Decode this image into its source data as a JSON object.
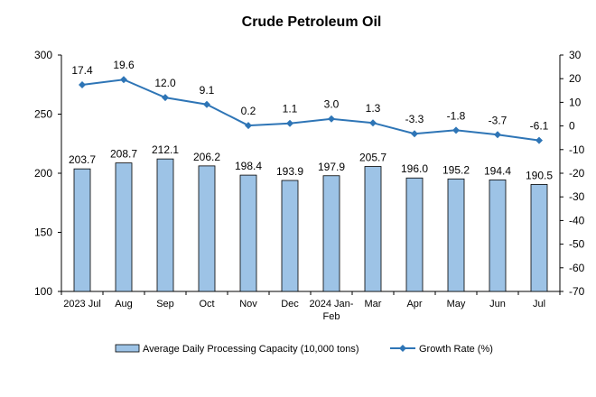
{
  "chart_data": {
    "type": "bar",
    "title": "Crude Petroleum Oil",
    "categories": [
      "2023 Jul",
      "Aug",
      "Sep",
      "Oct",
      "Nov",
      "Dec",
      "2024 Jan-Feb",
      "Mar",
      "Apr",
      "May",
      "Jun",
      "Jul"
    ],
    "series": [
      {
        "name": "Average Daily Processing Capacity (10,000 tons)",
        "type": "bar",
        "axis": "left",
        "color": "#9dc3e6",
        "values": [
          203.7,
          208.7,
          212.1,
          206.2,
          198.4,
          193.9,
          197.9,
          205.7,
          196.0,
          195.2,
          194.4,
          190.5
        ],
        "labels": [
          "203.7",
          "208.7",
          "212.1",
          "206.2",
          "198.4",
          "193.9",
          "197.9",
          "205.7",
          "196.0",
          "195.2",
          "194.4",
          "190.5"
        ]
      },
      {
        "name": "Growth Rate (%)",
        "type": "line",
        "axis": "right",
        "color": "#2e75b6",
        "values": [
          17.4,
          19.6,
          12.0,
          9.1,
          0.2,
          1.1,
          3.0,
          1.3,
          -3.3,
          -1.8,
          -3.7,
          -6.1
        ],
        "labels": [
          "17.4",
          "19.6",
          "12.0",
          "9.1",
          "0.2",
          "1.1",
          "3.0",
          "1.3",
          "-3.3",
          "-1.8",
          "-3.7",
          "-6.1"
        ]
      }
    ],
    "left_axis": {
      "ylim": [
        100,
        300
      ],
      "ticks": [
        100,
        150,
        200,
        250,
        300
      ]
    },
    "right_axis": {
      "ylim": [
        -70,
        30
      ],
      "ticks": [
        30,
        20,
        10,
        0,
        -10,
        -20,
        -30,
        -40,
        -50,
        -60,
        -70
      ]
    },
    "grid": false,
    "legend_position": "bottom"
  }
}
